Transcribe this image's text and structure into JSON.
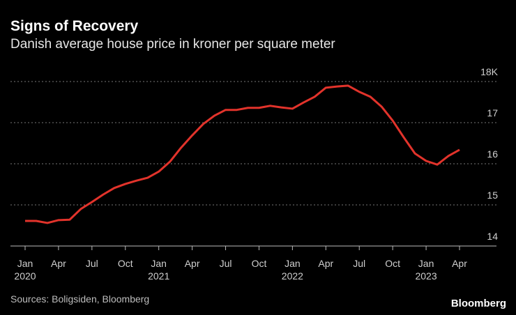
{
  "chart_data": {
    "type": "line",
    "title": "Signs of Recovery",
    "subtitle": "Danish average house price in kroner per square meter",
    "source": "Sources: Boligsiden, Bloomberg",
    "brand": "Bloomberg",
    "x": [
      "2020-01",
      "2020-02",
      "2020-03",
      "2020-04",
      "2020-05",
      "2020-06",
      "2020-07",
      "2020-08",
      "2020-09",
      "2020-10",
      "2020-11",
      "2020-12",
      "2021-01",
      "2021-02",
      "2021-03",
      "2021-04",
      "2021-05",
      "2021-06",
      "2021-07",
      "2021-08",
      "2021-09",
      "2021-10",
      "2021-11",
      "2021-12",
      "2022-01",
      "2022-02",
      "2022-03",
      "2022-04",
      "2022-05",
      "2022-06",
      "2022-07",
      "2022-08",
      "2022-09",
      "2022-10",
      "2022-11",
      "2022-12",
      "2023-01",
      "2023-02",
      "2023-03",
      "2023-04"
    ],
    "series": [
      {
        "name": "Average house price",
        "color": "#e2332b",
        "values": [
          14.61,
          14.61,
          14.56,
          14.63,
          14.64,
          14.9,
          15.07,
          15.25,
          15.41,
          15.51,
          15.59,
          15.66,
          15.81,
          16.05,
          16.39,
          16.69,
          16.97,
          17.17,
          17.31,
          17.31,
          17.36,
          17.36,
          17.41,
          17.37,
          17.34,
          17.49,
          17.63,
          17.85,
          17.88,
          17.9,
          17.75,
          17.63,
          17.39,
          17.05,
          16.64,
          16.25,
          16.07,
          15.98,
          16.19,
          16.34
        ]
      }
    ],
    "ylim": [
      14,
      18
    ],
    "yticks": [
      14,
      15,
      16,
      17,
      {
        "value": 18,
        "label": "18K"
      }
    ],
    "xticks": [
      {
        "value": "2020-01",
        "label": "Jan",
        "year": "2020"
      },
      {
        "value": "2020-04",
        "label": "Apr"
      },
      {
        "value": "2020-07",
        "label": "Jul"
      },
      {
        "value": "2020-10",
        "label": "Oct"
      },
      {
        "value": "2021-01",
        "label": "Jan",
        "year": "2021"
      },
      {
        "value": "2021-04",
        "label": "Apr"
      },
      {
        "value": "2021-07",
        "label": "Jul"
      },
      {
        "value": "2021-10",
        "label": "Oct"
      },
      {
        "value": "2022-01",
        "label": "Jan",
        "year": "2022"
      },
      {
        "value": "2022-04",
        "label": "Apr"
      },
      {
        "value": "2022-07",
        "label": "Jul"
      },
      {
        "value": "2022-10",
        "label": "Oct"
      },
      {
        "value": "2023-01",
        "label": "Jan",
        "year": "2023"
      },
      {
        "value": "2023-04",
        "label": "Apr"
      }
    ],
    "grid": true
  }
}
